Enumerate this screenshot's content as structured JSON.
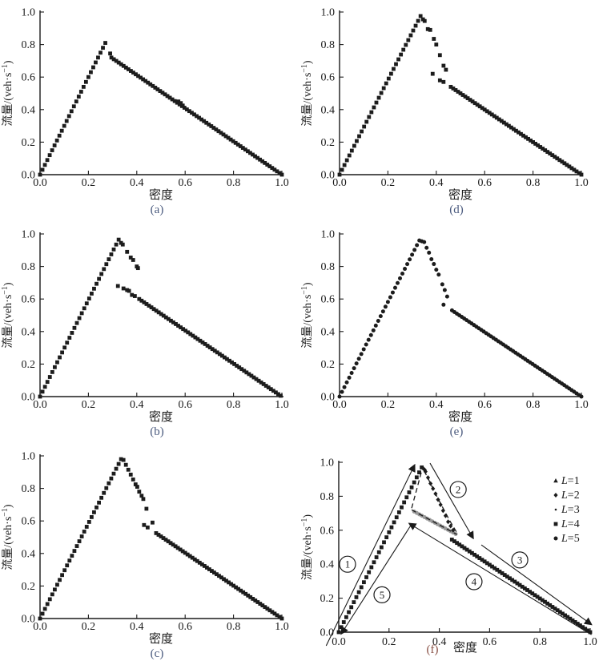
{
  "figure": {
    "description": "Six flow-density fundamental diagram scatter plots, panels (a)-(f)",
    "grid_order": [
      "a",
      "d",
      "b",
      "e",
      "c",
      "f"
    ]
  },
  "colors": {
    "marker_dark": "#1c1c1c",
    "marker_gray": "#999999",
    "axis": "#1a1a1a",
    "annotation_line": "#1a1a1a",
    "panel_label_blue": "#4a5a7e",
    "panel_label_red": "#8a5146",
    "background": "#ffffff"
  },
  "axis_defaults": {
    "xlabel": "密度",
    "ylabel_text": "流量/(veh·s⁻¹)",
    "ylabel_pre": "流量/(veh·s",
    "ylabel_sup": "−1",
    "ylabel_post": ")",
    "ticks": [
      "0.0",
      "0.2",
      "0.4",
      "0.6",
      "0.8",
      "1.0"
    ],
    "tick_values": [
      0,
      0.2,
      0.4,
      0.6,
      0.8,
      1.0
    ],
    "xlim": [
      0,
      1
    ],
    "ylim": [
      0,
      1
    ]
  },
  "chart_data": [
    {
      "id": "a",
      "letter": "(a)",
      "letter_color": "#4a5a7e",
      "type": "scatter",
      "marker": "square",
      "xlabel": "密度",
      "ylabel": "流量/(veh·s⁻¹)",
      "xlim": [
        0,
        1
      ],
      "ylim": [
        0,
        1
      ],
      "branches": [
        {
          "name": "free-flow-rise",
          "from": [
            0.0,
            0.0
          ],
          "to": [
            0.27,
            0.81
          ],
          "n": 28
        },
        {
          "name": "congested-fall",
          "from": [
            0.295,
            0.72
          ],
          "to": [
            1.0,
            0.0
          ],
          "n": 71
        }
      ],
      "extra_points": [
        [
          0.29,
          0.745
        ],
        [
          0.572,
          0.45
        ],
        [
          0.582,
          0.44
        ],
        [
          0.59,
          0.425
        ]
      ]
    },
    {
      "id": "d",
      "letter": "(d)",
      "letter_color": "#4a5a7e",
      "type": "scatter",
      "marker": "square",
      "xlabel": "密度",
      "ylabel": "流量/(veh·s⁻¹)",
      "xlim": [
        0,
        1
      ],
      "ylim": [
        0,
        1
      ],
      "branches": [
        {
          "name": "free-flow-rise",
          "from": [
            0.0,
            0.0
          ],
          "to": [
            0.335,
            0.975
          ],
          "n": 34
        },
        {
          "name": "congested-fall",
          "from": [
            0.46,
            0.54
          ],
          "to": [
            1.0,
            0.0
          ],
          "n": 55
        }
      ],
      "extra_points": [
        [
          0.345,
          0.955
        ],
        [
          0.352,
          0.945
        ],
        [
          0.365,
          0.895
        ],
        [
          0.375,
          0.89
        ],
        [
          0.39,
          0.835
        ],
        [
          0.4,
          0.8
        ],
        [
          0.415,
          0.735
        ],
        [
          0.43,
          0.67
        ],
        [
          0.44,
          0.645
        ],
        [
          0.385,
          0.62
        ],
        [
          0.415,
          0.58
        ],
        [
          0.43,
          0.57
        ]
      ]
    },
    {
      "id": "b",
      "letter": "(b)",
      "letter_color": "#4a5a7e",
      "type": "scatter",
      "marker": "square",
      "xlabel": "密度",
      "ylabel": "流量/(veh·s⁻¹)",
      "xlim": [
        0,
        1
      ],
      "ylim": [
        0,
        1
      ],
      "branches": [
        {
          "name": "free-flow-rise",
          "from": [
            0.0,
            0.0
          ],
          "to": [
            0.325,
            0.965
          ],
          "n": 33
        },
        {
          "name": "congested-fall",
          "from": [
            0.41,
            0.6
          ],
          "to": [
            0.995,
            0.005
          ],
          "n": 59
        }
      ],
      "extra_points": [
        [
          0.335,
          0.945
        ],
        [
          0.342,
          0.935
        ],
        [
          0.36,
          0.89
        ],
        [
          0.375,
          0.855
        ],
        [
          0.385,
          0.84
        ],
        [
          0.4,
          0.8
        ],
        [
          0.405,
          0.79
        ],
        [
          0.322,
          0.68
        ],
        [
          0.345,
          0.665
        ],
        [
          0.36,
          0.655
        ],
        [
          0.368,
          0.65
        ],
        [
          0.38,
          0.625
        ],
        [
          0.392,
          0.618
        ]
      ]
    },
    {
      "id": "e",
      "letter": "(e)",
      "letter_color": "#4a5a7e",
      "type": "scatter",
      "marker": "circle",
      "xlabel": "密度",
      "ylabel": "流量/(veh·s⁻¹)",
      "xlim": [
        0,
        1
      ],
      "ylim": [
        0,
        1
      ],
      "branches": [
        {
          "name": "free-flow-rise",
          "from": [
            0.0,
            0.0
          ],
          "to": [
            0.33,
            0.96
          ],
          "n": 34
        },
        {
          "name": "congested-fall",
          "from": [
            0.465,
            0.53
          ],
          "to": [
            1.0,
            0.0
          ],
          "n": 54
        }
      ],
      "extra_points": [
        [
          0.34,
          0.955
        ],
        [
          0.35,
          0.95
        ],
        [
          0.36,
          0.915
        ],
        [
          0.37,
          0.885
        ],
        [
          0.38,
          0.845
        ],
        [
          0.39,
          0.815
        ],
        [
          0.4,
          0.78
        ],
        [
          0.41,
          0.75
        ],
        [
          0.425,
          0.69
        ],
        [
          0.435,
          0.655
        ],
        [
          0.445,
          0.615
        ],
        [
          0.43,
          0.565
        ]
      ]
    },
    {
      "id": "c",
      "letter": "(c)",
      "letter_color": "#4a5a7e",
      "type": "scatter",
      "marker": "square",
      "xlabel": "密度",
      "ylabel": "流量/(veh·s⁻¹)",
      "xlim": [
        0,
        1
      ],
      "ylim": [
        0,
        1
      ],
      "branches": [
        {
          "name": "free-flow-rise",
          "from": [
            0.0,
            0.0
          ],
          "to": [
            0.335,
            0.98
          ],
          "n": 34
        },
        {
          "name": "congested-fall",
          "from": [
            0.48,
            0.525
          ],
          "to": [
            1.0,
            0.0
          ],
          "n": 53
        }
      ],
      "extra_points": [
        [
          0.345,
          0.975
        ],
        [
          0.355,
          0.945
        ],
        [
          0.365,
          0.915
        ],
        [
          0.375,
          0.885
        ],
        [
          0.385,
          0.855
        ],
        [
          0.395,
          0.825
        ],
        [
          0.402,
          0.81
        ],
        [
          0.41,
          0.78
        ],
        [
          0.42,
          0.755
        ],
        [
          0.427,
          0.735
        ],
        [
          0.44,
          0.675
        ],
        [
          0.43,
          0.575
        ],
        [
          0.445,
          0.56
        ],
        [
          0.465,
          0.59
        ]
      ]
    },
    {
      "id": "f",
      "letter": "(f)",
      "letter_color": "#8a5146",
      "type": "scatter-overlay",
      "xlabel": "密度",
      "ylabel": "流量/(veh·s⁻¹)",
      "xlim": [
        0,
        1
      ],
      "ylim": [
        0,
        1
      ],
      "series": [
        {
          "name": "L=4-rise",
          "marker": "square",
          "color": "#1c1c1c",
          "branches": [
            {
              "from": [
                0.0,
                0.0
              ],
              "to": [
                0.33,
                0.97
              ],
              "n": 34
            }
          ],
          "points": []
        },
        {
          "name": "L=4-fall",
          "marker": "square",
          "color": "#1c1c1c",
          "branches": [
            {
              "from": [
                0.45,
                0.545
              ],
              "to": [
                1.0,
                0.0
              ],
              "n": 56
            }
          ],
          "points": []
        },
        {
          "name": "L=1-metastable-gray",
          "marker": "circle",
          "color": "#999999",
          "branches": [
            {
              "from": [
                0.3,
                0.71
              ],
              "to": [
                0.465,
                0.578
              ],
              "n": 17
            }
          ],
          "points": []
        },
        {
          "name": "L=2-peak-scatter",
          "marker": "diamond",
          "color": "#1c1c1c",
          "branches": [],
          "points": [
            [
              0.335,
              0.965
            ],
            [
              0.342,
              0.955
            ],
            [
              0.345,
              0.945
            ],
            [
              0.355,
              0.91
            ],
            [
              0.365,
              0.875
            ],
            [
              0.375,
              0.845
            ],
            [
              0.385,
              0.815
            ],
            [
              0.395,
              0.78
            ],
            [
              0.405,
              0.75
            ],
            [
              0.415,
              0.715
            ],
            [
              0.425,
              0.685
            ],
            [
              0.435,
              0.65
            ],
            [
              0.445,
              0.625
            ],
            [
              0.455,
              0.6
            ]
          ]
        }
      ],
      "dashed_lines": [
        {
          "name": "loop-rise",
          "points": [
            [
              0.29,
              0.73
            ],
            [
              0.33,
              0.95
            ]
          ]
        },
        {
          "name": "loop-fall",
          "points": [
            [
              0.34,
              0.95
            ],
            [
              0.39,
              0.8
            ],
            [
              0.44,
              0.66
            ],
            [
              0.47,
              0.585
            ]
          ]
        },
        {
          "name": "loop-shallow",
          "points": [
            [
              0.29,
              0.72
            ],
            [
              0.47,
              0.575
            ]
          ]
        }
      ],
      "arrows": [
        {
          "name": "phase-1-up",
          "from": [
            -0.05,
            -0.08
          ],
          "to": [
            0.302,
            0.985
          ]
        },
        {
          "name": "phase-2-down",
          "from": [
            0.363,
            0.995
          ],
          "to": [
            0.535,
            0.552
          ]
        },
        {
          "name": "phase-3-down",
          "from": [
            0.567,
            0.514
          ],
          "to": [
            1.005,
            0.045
          ]
        },
        {
          "name": "phase-4-upleft",
          "from": [
            1.005,
            -0.015
          ],
          "to": [
            0.28,
            0.64
          ]
        },
        {
          "name": "phase-5-toorigin",
          "from": [
            0.285,
            0.625
          ],
          "to": [
            0.01,
            -0.01
          ]
        }
      ],
      "circled_numbers": [
        {
          "label": "1",
          "x": 0.035,
          "y": 0.4
        },
        {
          "label": "2",
          "x": 0.475,
          "y": 0.84
        },
        {
          "label": "3",
          "x": 0.72,
          "y": 0.425
        },
        {
          "label": "4",
          "x": 0.538,
          "y": 0.297
        },
        {
          "label": "5",
          "x": 0.172,
          "y": 0.22
        }
      ],
      "legend": [
        {
          "marker": "triangle",
          "label_italic": "L",
          "label_rest": "=1"
        },
        {
          "marker": "diamond",
          "label_italic": "L",
          "label_rest": "=2"
        },
        {
          "marker": "dot",
          "label_italic": "L",
          "label_rest": "=3"
        },
        {
          "marker": "square",
          "label_italic": "L",
          "label_rest": "=4"
        },
        {
          "marker": "circle",
          "label_italic": "L",
          "label_rest": "=5"
        }
      ]
    }
  ]
}
